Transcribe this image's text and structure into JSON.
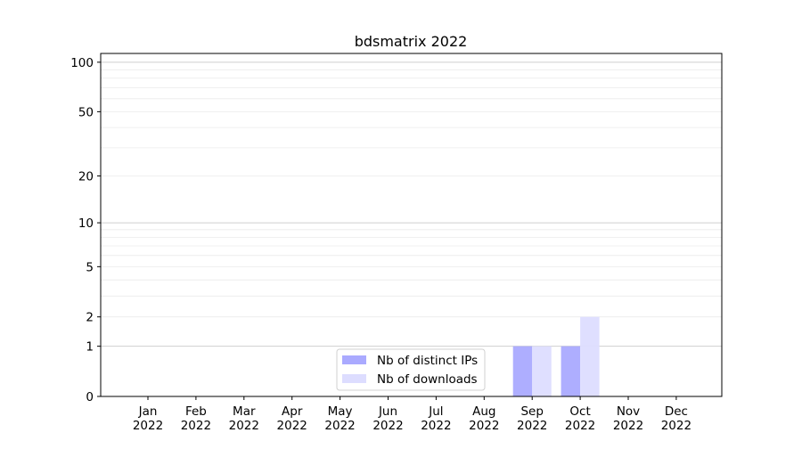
{
  "chart_data": {
    "type": "bar",
    "title": "bdsmatrix 2022",
    "xlabel": "",
    "ylabel": "",
    "yscale": "symlog (log10(1+y))",
    "ylim": [
      0,
      113
    ],
    "yticks": [
      0,
      1,
      2,
      5,
      10,
      20,
      50,
      100
    ],
    "grid": true,
    "legend_position": "lower-center",
    "categories": [
      "Jan\n2022",
      "Feb\n2022",
      "Mar\n2022",
      "Apr\n2022",
      "May\n2022",
      "Jun\n2022",
      "Jul\n2022",
      "Aug\n2022",
      "Sep\n2022",
      "Oct\n2022",
      "Nov\n2022",
      "Dec\n2022"
    ],
    "series": [
      {
        "name": "Nb of distinct IPs",
        "color": "#aaaaff",
        "values": [
          0,
          0,
          0,
          0,
          0,
          0,
          0,
          0,
          1,
          1,
          0,
          0
        ]
      },
      {
        "name": "Nb of downloads",
        "color": "#ddddff",
        "values": [
          0,
          0,
          0,
          0,
          0,
          0,
          0,
          0,
          1,
          2,
          0,
          0
        ]
      }
    ]
  }
}
